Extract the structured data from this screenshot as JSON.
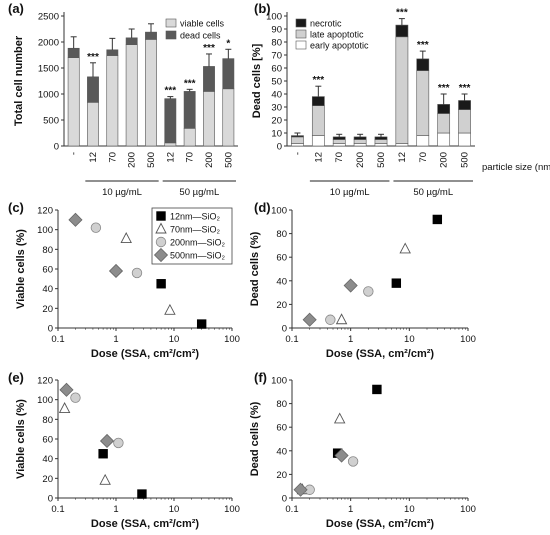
{
  "colors": {
    "viable": "#d9d9d9",
    "dead": "#595959",
    "necrotic": "#1a1a1a",
    "late_apoptotic": "#d0d0d0",
    "early_apoptotic": "#ffffff",
    "axis": "#333333",
    "grid": "#ffffff"
  },
  "shared": {
    "particle_size_label": "particle size (nm)",
    "conditions": [
      "10 µg/mL",
      "50 µg/mL"
    ],
    "xlabel_dose": "Dose (SSA, cm²/cm²)"
  },
  "chart_data": [
    {
      "panel": "(a)",
      "type": "bar",
      "stacked": true,
      "categories": [
        "-",
        "12",
        "70",
        "200",
        "500",
        "12",
        "70",
        "200",
        "500"
      ],
      "groups": [
        "",
        "10 µg/mL",
        "10 µg/mL",
        "10 µg/mL",
        "10 µg/mL",
        "50 µg/mL",
        "50 µg/mL",
        "50 µg/mL",
        "50 µg/mL"
      ],
      "series": [
        {
          "name": "viable cells",
          "values": [
            1700,
            840,
            1740,
            1950,
            2050,
            60,
            340,
            1050,
            1100
          ]
        },
        {
          "name": "dead cells",
          "values": [
            180,
            490,
            110,
            130,
            140,
            850,
            710,
            480,
            580
          ]
        }
      ],
      "errors": [
        220,
        270,
        220,
        170,
        160,
        40,
        40,
        240,
        180
      ],
      "annotations": [
        "",
        "***",
        "",
        "",
        "",
        "***",
        "***",
        "***",
        "*"
      ],
      "ylabel": "Total cell number",
      "ylim": [
        0,
        2500
      ],
      "yticks": [
        "0",
        "500",
        "1000",
        "1500",
        "2000",
        "2500"
      ],
      "legend": "top-right"
    },
    {
      "panel": "(b)",
      "type": "bar",
      "stacked": true,
      "categories": [
        "-",
        "12",
        "70",
        "200",
        "500",
        "12",
        "70",
        "200",
        "500"
      ],
      "groups": [
        "",
        "10 µg/mL",
        "10 µg/mL",
        "10 µg/mL",
        "10 µg/mL",
        "50 µg/mL",
        "50 µg/mL",
        "50 µg/mL",
        "50 µg/mL"
      ],
      "series": [
        {
          "name": "early apoptotic",
          "values": [
            2,
            8,
            2,
            2,
            2,
            2,
            8,
            10,
            10
          ]
        },
        {
          "name": "late apoptotic",
          "values": [
            5,
            23,
            3,
            3,
            3,
            82,
            50,
            15,
            18
          ]
        },
        {
          "name": "necrotic",
          "values": [
            1,
            7,
            2,
            2,
            2,
            9,
            9,
            7,
            7
          ]
        }
      ],
      "errors": [
        2,
        8,
        2,
        2,
        2,
        5,
        6,
        8,
        5
      ],
      "annotations": [
        "",
        "***",
        "",
        "",
        "",
        "***",
        "***",
        "***",
        "***"
      ],
      "ylabel": "Dead cells [%]",
      "ylim": [
        0,
        100
      ],
      "yticks": [
        "0",
        "10",
        "20",
        "30",
        "40",
        "50",
        "60",
        "70",
        "80",
        "90",
        "100"
      ],
      "legend": "top-left"
    },
    {
      "panel": "(c)",
      "type": "scatter",
      "xscale": "log",
      "xlim": [
        0.1,
        100
      ],
      "xticks": [
        "0.1",
        "1",
        "10",
        "100"
      ],
      "ylim": [
        0,
        120
      ],
      "yticks": [
        "0",
        "20",
        "40",
        "60",
        "80",
        "100",
        "120"
      ],
      "xlabel": "Dose (SSA, cm²/cm²)",
      "ylabel": "Viable cells (%)",
      "legend": "top-right",
      "series": [
        {
          "name": "12nm—SiO₂",
          "marker": "square",
          "x": [
            6,
            30
          ],
          "y": [
            45,
            4
          ]
        },
        {
          "name": "70nm—SiO₂",
          "marker": "triangle",
          "x": [
            1.5,
            8.5
          ],
          "y": [
            91,
            18
          ]
        },
        {
          "name": "200nm—SiO₂",
          "marker": "circle",
          "x": [
            0.45,
            2.3
          ],
          "y": [
            102,
            56
          ]
        },
        {
          "name": "500nm—SiO₂",
          "marker": "diamond",
          "x": [
            0.2,
            1.0
          ],
          "y": [
            110,
            58
          ]
        }
      ]
    },
    {
      "panel": "(d)",
      "type": "scatter",
      "xscale": "log",
      "xlim": [
        0.1,
        100
      ],
      "xticks": [
        "0.1",
        "1",
        "10",
        "100"
      ],
      "ylim": [
        0,
        100
      ],
      "yticks": [
        "0",
        "20",
        "40",
        "60",
        "80",
        "100"
      ],
      "xlabel": "Dose (SSA, cm²/cm²)",
      "ylabel": "Dead cells (%)",
      "series": [
        {
          "name": "12nm—SiO₂",
          "marker": "square",
          "x": [
            6,
            30
          ],
          "y": [
            38,
            92
          ]
        },
        {
          "name": "70nm—SiO₂",
          "marker": "triangle",
          "x": [
            0.7,
            8.5
          ],
          "y": [
            7,
            67
          ]
        },
        {
          "name": "200nm—SiO₂",
          "marker": "circle",
          "x": [
            0.45,
            2.0
          ],
          "y": [
            7,
            31
          ]
        },
        {
          "name": "500nm—SiO₂",
          "marker": "diamond",
          "x": [
            0.2,
            1.0
          ],
          "y": [
            7,
            36
          ]
        }
      ]
    },
    {
      "panel": "(e)",
      "type": "scatter",
      "xscale": "log",
      "xlim": [
        0.1,
        100
      ],
      "xticks": [
        "0.1",
        "1",
        "10",
        "100"
      ],
      "ylim": [
        0,
        120
      ],
      "yticks": [
        "0",
        "20",
        "40",
        "60",
        "80",
        "100",
        "120"
      ],
      "xlabel": "Dose (SSA, cm²/cm²)",
      "ylabel": "Viable cells (%)",
      "series": [
        {
          "name": "12nm—SiO₂",
          "marker": "square",
          "x": [
            0.6,
            2.8
          ],
          "y": [
            45,
            4
          ]
        },
        {
          "name": "70nm—SiO₂",
          "marker": "triangle",
          "x": [
            0.13,
            0.65
          ],
          "y": [
            91,
            18
          ]
        },
        {
          "name": "200nm—SiO₂",
          "marker": "circle",
          "x": [
            0.2,
            1.1
          ],
          "y": [
            102,
            56
          ]
        },
        {
          "name": "500nm—SiO₂",
          "marker": "diamond",
          "x": [
            0.14,
            0.7
          ],
          "y": [
            110,
            58
          ]
        }
      ]
    },
    {
      "panel": "(f)",
      "type": "scatter",
      "xscale": "log",
      "xlim": [
        0.1,
        100
      ],
      "xticks": [
        "0.1",
        "1",
        "10",
        "100"
      ],
      "ylim": [
        0,
        100
      ],
      "yticks": [
        "0",
        "20",
        "40",
        "60",
        "80",
        "100"
      ],
      "xlabel": "Dose (SSA, cm²/cm²)",
      "ylabel": "Dead cells (%)",
      "series": [
        {
          "name": "12nm—SiO₂",
          "marker": "square",
          "x": [
            0.6,
            2.8
          ],
          "y": [
            38,
            92
          ]
        },
        {
          "name": "70nm—SiO₂",
          "marker": "triangle",
          "x": [
            0.15,
            0.65
          ],
          "y": [
            7,
            67
          ]
        },
        {
          "name": "200nm—SiO₂",
          "marker": "circle",
          "x": [
            0.2,
            1.1
          ],
          "y": [
            7,
            31
          ]
        },
        {
          "name": "500nm—SiO₂",
          "marker": "diamond",
          "x": [
            0.14,
            0.7
          ],
          "y": [
            7,
            36
          ]
        }
      ]
    }
  ]
}
